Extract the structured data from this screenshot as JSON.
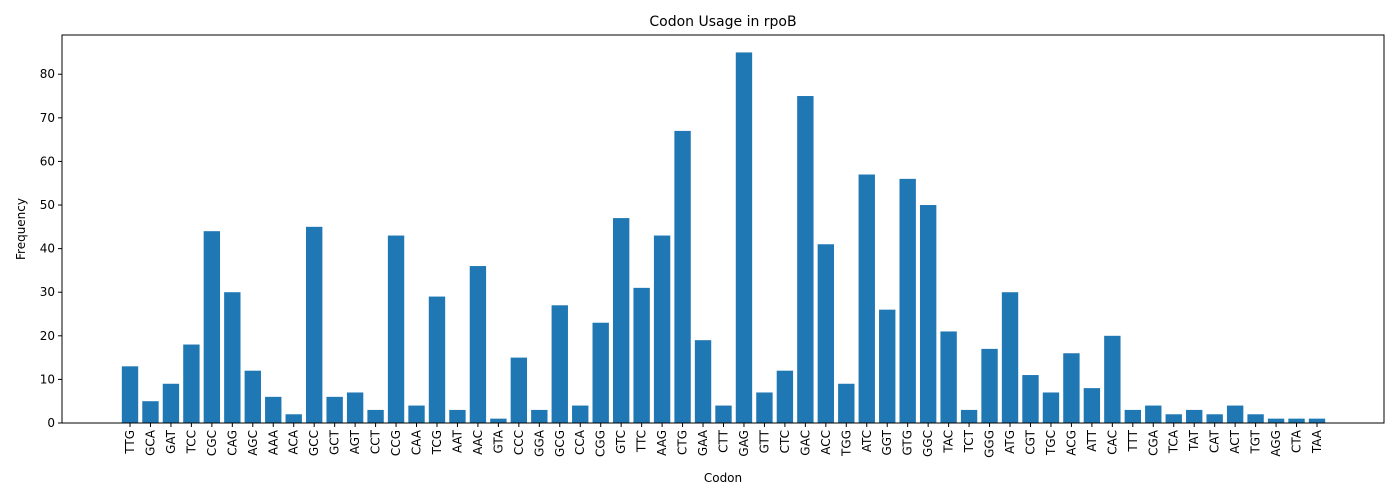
{
  "chart_data": {
    "type": "bar",
    "title": "Codon Usage in rpoB",
    "xlabel": "Codon",
    "ylabel": "Frequency",
    "ylim": [
      0,
      89
    ],
    "yticks": [
      0,
      10,
      20,
      30,
      40,
      50,
      60,
      70,
      80
    ],
    "grid": false,
    "bar_color": "#1f77b4",
    "categories": [
      "TTG",
      "GCA",
      "GAT",
      "TCC",
      "CGC",
      "CAG",
      "AGC",
      "AAA",
      "ACA",
      "GCC",
      "GCT",
      "AGT",
      "CCT",
      "CCG",
      "CAA",
      "TCG",
      "AAT",
      "AAC",
      "GTA",
      "CCC",
      "GGA",
      "GCG",
      "CCA",
      "CGG",
      "GTC",
      "TTC",
      "AAG",
      "CTG",
      "GAA",
      "CTT",
      "GAG",
      "GTT",
      "CTC",
      "GAC",
      "ACC",
      "TGG",
      "ATC",
      "GGT",
      "GTG",
      "GGC",
      "TAC",
      "TCT",
      "GGG",
      "ATG",
      "CGT",
      "TGC",
      "ACG",
      "ATT",
      "CAC",
      "TTT",
      "CGA",
      "TCA",
      "TAT",
      "CAT",
      "ACT",
      "TGT",
      "AGG",
      "CTA",
      "TAA"
    ],
    "values": [
      13,
      5,
      9,
      18,
      44,
      30,
      12,
      6,
      2,
      45,
      6,
      7,
      3,
      43,
      4,
      29,
      3,
      36,
      1,
      15,
      3,
      27,
      4,
      23,
      47,
      31,
      43,
      67,
      19,
      4,
      85,
      7,
      12,
      75,
      41,
      9,
      57,
      26,
      56,
      50,
      21,
      3,
      17,
      30,
      11,
      7,
      16,
      8,
      20,
      3,
      4,
      2,
      3,
      2,
      4,
      2,
      1,
      1,
      1
    ]
  }
}
